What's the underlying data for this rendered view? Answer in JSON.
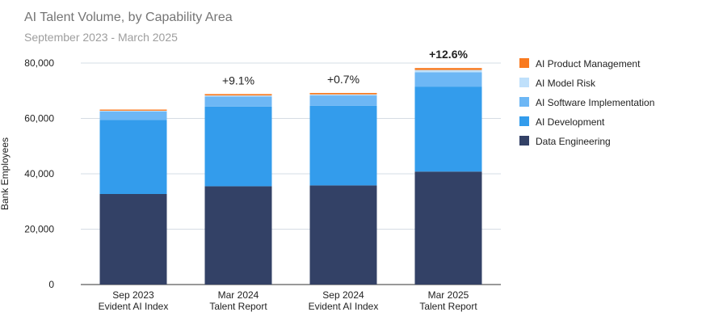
{
  "chart_data": {
    "type": "bar",
    "stacked": true,
    "title": "AI Talent Volume, by Capability Area",
    "subtitle": "September 2023 - March 2025",
    "ylabel": "Bank Employees",
    "xlabel": "",
    "ylim": [
      0,
      80000
    ],
    "yticks": [
      0,
      20000,
      40000,
      60000,
      80000
    ],
    "ytick_labels": [
      "0",
      "20,000",
      "40,000",
      "60,000",
      "80,000"
    ],
    "grid": true,
    "legend_position": "right",
    "categories": [
      [
        "Sep 2023",
        "Evident AI Index"
      ],
      [
        "Mar 2024",
        "Talent Report"
      ],
      [
        "Sep 2024",
        "Evident AI Index"
      ],
      [
        "Mar 2025",
        "Talent Report"
      ]
    ],
    "series": [
      {
        "name": "Data Engineering",
        "color": "#334166",
        "values": [
          32700,
          35500,
          35800,
          40800
        ]
      },
      {
        "name": "AI Development",
        "color": "#339cec",
        "values": [
          26800,
          28800,
          28800,
          30700
        ]
      },
      {
        "name": "AI Software Implementation",
        "color": "#6db7f5",
        "values": [
          3000,
          3600,
          3700,
          5200
        ]
      },
      {
        "name": "AI Model Risk",
        "color": "#bfe0fb",
        "values": [
          300,
          400,
          400,
          800
        ]
      },
      {
        "name": "AI Product Management",
        "color": "#f97a1f",
        "values": [
          400,
          500,
          500,
          700
        ]
      }
    ],
    "annotations": [
      {
        "category_index": 1,
        "text": "+9.1%",
        "bold": false
      },
      {
        "category_index": 2,
        "text": "+0.7%",
        "bold": false
      },
      {
        "category_index": 3,
        "text": "+12.6%",
        "bold": true
      }
    ]
  }
}
